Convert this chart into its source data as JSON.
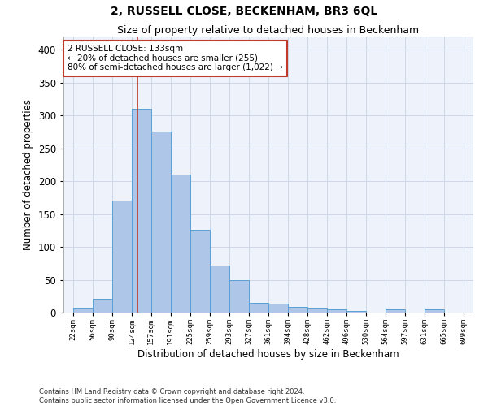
{
  "title": "2, RUSSELL CLOSE, BECKENHAM, BR3 6QL",
  "subtitle": "Size of property relative to detached houses in Beckenham",
  "xlabel": "Distribution of detached houses by size in Beckenham",
  "ylabel": "Number of detached properties",
  "bin_edges": [
    22,
    56,
    90,
    124,
    157,
    191,
    225,
    259,
    293,
    327,
    361,
    394,
    428,
    462,
    496,
    530,
    564,
    597,
    631,
    665,
    699
  ],
  "bin_heights": [
    7,
    21,
    170,
    310,
    276,
    210,
    126,
    72,
    49,
    15,
    13,
    9,
    8,
    5,
    3,
    0,
    5,
    0,
    5,
    0
  ],
  "tick_labels": [
    "22sqm",
    "56sqm",
    "90sqm",
    "124sqm",
    "157sqm",
    "191sqm",
    "225sqm",
    "259sqm",
    "293sqm",
    "327sqm",
    "361sqm",
    "394sqm",
    "428sqm",
    "462sqm",
    "496sqm",
    "530sqm",
    "564sqm",
    "597sqm",
    "631sqm",
    "665sqm",
    "699sqm"
  ],
  "bar_color": "#aec6e8",
  "bar_edge_color": "#5a9fd4",
  "grid_color": "#d0d8e8",
  "bg_color": "#eef2fa",
  "vline_x": 133,
  "vline_color": "#c0392b",
  "annotation_text": "2 RUSSELL CLOSE: 133sqm\n← 20% of detached houses are smaller (255)\n80% of semi-detached houses are larger (1,022) →",
  "annotation_box_color": "#c0392b",
  "ylim": [
    0,
    420
  ],
  "yticks": [
    0,
    50,
    100,
    150,
    200,
    250,
    300,
    350,
    400
  ],
  "footer_line1": "Contains HM Land Registry data © Crown copyright and database right 2024.",
  "footer_line2": "Contains public sector information licensed under the Open Government Licence v3.0."
}
